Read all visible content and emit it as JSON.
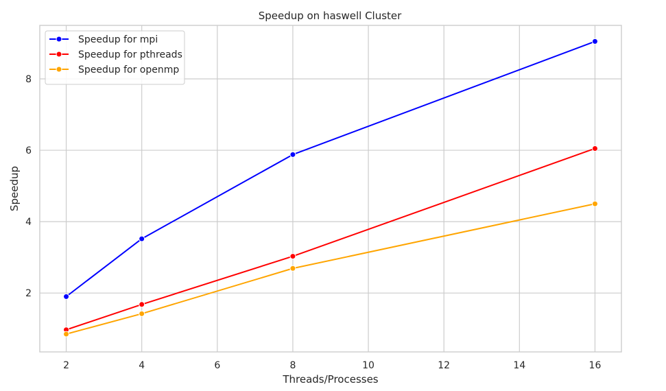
{
  "chart_data": {
    "type": "line",
    "title": "Speedup on haswell Cluster",
    "xlabel": "Threads/Processes",
    "ylabel": "Speedup",
    "x": [
      2,
      4,
      8,
      16
    ],
    "xlim": [
      1.3,
      16.7
    ],
    "ylim": [
      0.35,
      9.5
    ],
    "xticks": [
      2,
      4,
      6,
      8,
      10,
      12,
      14,
      16
    ],
    "yticks": [
      2,
      4,
      6,
      8
    ],
    "grid": true,
    "legend_position": "top-left",
    "series": [
      {
        "name": "Speedup for mpi",
        "color": "#0000ff",
        "values": [
          1.9,
          3.52,
          5.88,
          9.05
        ]
      },
      {
        "name": "Speedup for pthreads",
        "color": "#ff0000",
        "values": [
          0.97,
          1.68,
          3.03,
          6.05
        ]
      },
      {
        "name": "Speedup for openmp",
        "color": "#ffa500",
        "values": [
          0.85,
          1.42,
          2.69,
          4.5
        ]
      }
    ]
  }
}
